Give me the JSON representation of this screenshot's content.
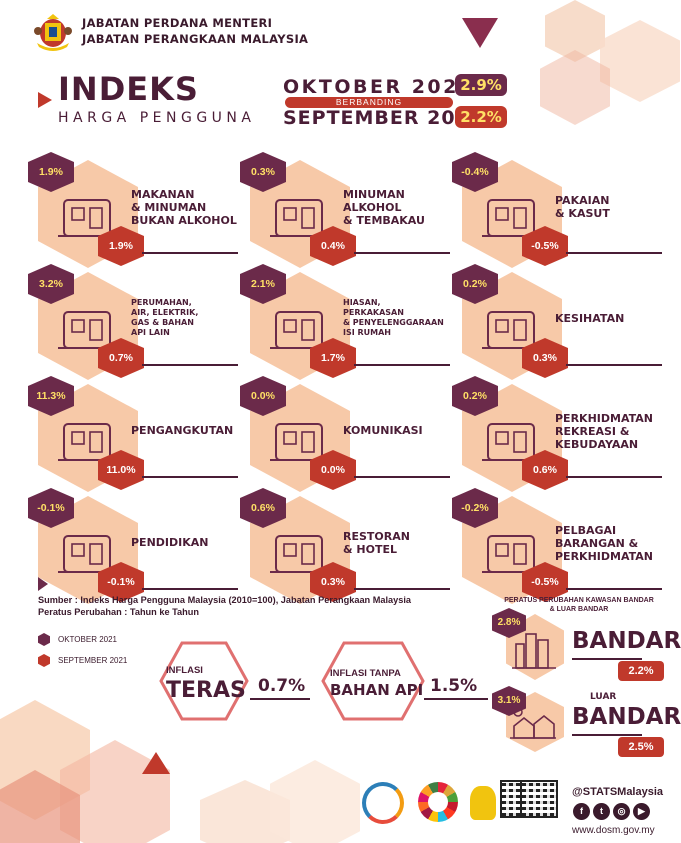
{
  "header": {
    "agency_line1": "JABATAN PERDANA MENTERI",
    "agency_line2": "JABATAN PERANGKAAN MALAYSIA",
    "title": "INDEKS",
    "subtitle": "HARGA PENGGUNA",
    "month_current": "OKTOBER 2021",
    "versus": "BERBANDING",
    "month_previous": "SEPTEMBER 2021",
    "pct_current": "2.9%",
    "pct_previous": "2.2%"
  },
  "colors": {
    "october": "#6b2a4a",
    "september": "#c0392b",
    "accent_yellow": "#ffe066",
    "peach": "#f7c9a8"
  },
  "categories": [
    {
      "name_lines": [
        "MAKANAN",
        "& MINUMAN",
        "BUKAN ALKOHOL"
      ],
      "oct": "1.9%",
      "sep": "1.9%",
      "icon": "food-basket-icon"
    },
    {
      "name_lines": [
        "MINUMAN",
        "ALKOHOL",
        "& TEMBAKAU"
      ],
      "oct": "0.3%",
      "sep": "0.4%",
      "icon": "bottles-icon"
    },
    {
      "name_lines": [
        "PAKAIAN",
        "& KASUT"
      ],
      "oct": "-0.4%",
      "sep": "-0.5%",
      "icon": "clothing-icon"
    },
    {
      "name_lines": [
        "PERUMAHAN,",
        "AIR, ELEKTRIK,",
        "GAS & BAHAN",
        "API LAIN"
      ],
      "oct": "3.2%",
      "sep": "0.7%",
      "icon": "house-icon"
    },
    {
      "name_lines": [
        "HIASAN,",
        "PERKAKASAN",
        "& PENYELENGGARAAN",
        "ISI RUMAH"
      ],
      "oct": "2.1%",
      "sep": "1.7%",
      "icon": "sofa-lamp-icon"
    },
    {
      "name_lines": [
        "KESIHATAN"
      ],
      "oct": "0.2%",
      "sep": "0.3%",
      "icon": "health-phone-icon"
    },
    {
      "name_lines": [
        "PENGANGKUTAN"
      ],
      "oct": "11.3%",
      "sep": "11.0%",
      "icon": "vehicles-icon"
    },
    {
      "name_lines": [
        "KOMUNIKASI"
      ],
      "oct": "0.0%",
      "sep": "0.0%",
      "icon": "communication-icon"
    },
    {
      "name_lines": [
        "PERKHIDMATAN",
        "REKREASI &",
        "KEBUDAYAAN"
      ],
      "oct": "0.2%",
      "sep": "0.6%",
      "icon": "popcorn-film-icon"
    },
    {
      "name_lines": [
        "PENDIDIKAN"
      ],
      "oct": "-0.1%",
      "sep": "-0.1%",
      "icon": "graduation-book-icon"
    },
    {
      "name_lines": [
        "RESTORAN",
        "& HOTEL"
      ],
      "oct": "0.6%",
      "sep": "0.3%",
      "icon": "restaurant-icon"
    },
    {
      "name_lines": [
        "PELBAGAI",
        "BARANGAN &",
        "PERKHIDMATAN"
      ],
      "oct": "-0.2%",
      "sep": "-0.5%",
      "icon": "card-payment-icon"
    }
  ],
  "source": {
    "line1": "Sumber : Indeks Harga Pengguna Malaysia (2010=100),  Jabatan Perangkaan Malaysia",
    "line2": "Peratus Perubahan : Tahun ke Tahun"
  },
  "legend": {
    "october": "OKTOBER 2021",
    "september": "SEPTEMBER 2021"
  },
  "inflation": {
    "core_small": "INFLASI",
    "core_big": "TERAS",
    "core_value": "0.7%",
    "nofuel_small": "INFLASI TANPA",
    "nofuel_big": "BAHAN API",
    "nofuel_value": "1.5%"
  },
  "regions": {
    "title_line1": "PERATUS PERUBAHAN KAWASAN BANDAR",
    "title_line2": "& LUAR BANDAR",
    "urban_name": "BANDAR",
    "urban_oct": "2.8%",
    "urban_sep": "2.2%",
    "rural_small": "LUAR",
    "rural_big": "BANDAR",
    "rural_oct": "3.1%",
    "rural_sep": "2.5%"
  },
  "footer": {
    "handle": "@STATSMalaysia",
    "website": "www.dosm.gov.my",
    "social_icons": [
      "facebook-icon",
      "twitter-icon",
      "instagram-icon",
      "youtube-icon"
    ]
  }
}
